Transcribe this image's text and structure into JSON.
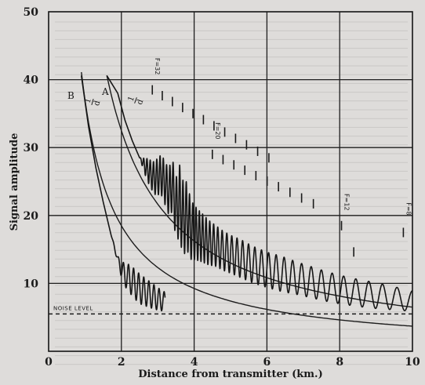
{
  "chart_data": {
    "type": "line",
    "title": "",
    "xlabel": "Distance from transmitter (km.)",
    "ylabel": "Signal amplitude",
    "xlim": [
      0,
      10
    ],
    "ylim": [
      0,
      50
    ],
    "x_ticks": [
      "0",
      "2",
      "4",
      "6",
      "8",
      "10"
    ],
    "y_ticks": [
      "10",
      "20",
      "30",
      "40",
      "50"
    ],
    "grid": true,
    "noise_level": {
      "label": "NOISE LEVEL",
      "y": 5.5
    },
    "curve_labels": {
      "A": "A",
      "B": "B"
    },
    "theory_curves": [
      {
        "id": "A",
        "label": "1/d",
        "numerator": "1",
        "denominator": "d",
        "k": 65,
        "x_range": [
          1.6,
          10
        ]
      },
      {
        "id": "B",
        "label": "1/d",
        "numerator": "1",
        "denominator": "d",
        "k": 37,
        "x_range": [
          0.9,
          10
        ]
      }
    ],
    "series": [
      {
        "id": "A",
        "x": [
          1.6,
          1.9,
          2.1,
          2.3,
          2.5,
          2.7,
          2.9,
          3.1,
          3.3,
          3.4,
          3.5,
          3.6,
          3.7,
          3.8,
          3.9,
          4.0,
          4.2,
          4.4,
          4.6,
          4.8,
          5.0,
          5.3,
          5.6,
          6.0,
          6.4,
          6.8,
          7.2,
          7.6,
          8.0,
          8.5,
          9.0,
          9.5,
          10.0
        ],
        "y": [
          40.6,
          38,
          34,
          31,
          28.5,
          26.8,
          25.5,
          26,
          23.5,
          24.5,
          21,
          22,
          19.5,
          20,
          18,
          17.5,
          16.8,
          16,
          15.5,
          14.8,
          14.3,
          13.6,
          12.8,
          12,
          11.4,
          10.8,
          10.2,
          9.6,
          9.1,
          8.6,
          8.2,
          7.8,
          7.4
        ],
        "oscillation": [
          0,
          0,
          0,
          0,
          0,
          1.6,
          2.4,
          3.0,
          3.4,
          4.0,
          4.5,
          5.5,
          5.5,
          5.0,
          4.5,
          4.0,
          3.6,
          3.3,
          3.0,
          2.9,
          2.8,
          2.8,
          2.7,
          2.6,
          2.6,
          2.4,
          2.3,
          2.2,
          2.1,
          2.0,
          1.9,
          1.7,
          1.5
        ]
      },
      {
        "id": "B",
        "x": [
          0.9,
          1.1,
          1.3,
          1.5,
          1.7,
          1.9,
          2.05,
          2.2,
          2.35,
          2.5,
          2.7,
          2.9,
          3.05,
          3.2
        ],
        "y": [
          40.6,
          33,
          27,
          22,
          17.5,
          13.5,
          11.5,
          10.8,
          10,
          9.2,
          8.6,
          8.0,
          7.6,
          7.3
        ],
        "oscillation": [
          0,
          0,
          0,
          0,
          0,
          0.5,
          1.6,
          2.0,
          2.2,
          2.2,
          2.0,
          1.8,
          1.6,
          1.4
        ]
      }
    ],
    "markers": [
      {
        "label": "F=32",
        "x": 2.85,
        "y_top": 38.5,
        "x_end": 6.3
      },
      {
        "label": "F=20",
        "x": 4.5,
        "y_top": 29,
        "x_end": 7.6
      },
      {
        "label": "F=12",
        "x": 8.05,
        "y_top": 18.5,
        "x_end": 8.5
      },
      {
        "label": "F=8",
        "x": 9.75,
        "y_top": 17.5,
        "x_end": 9.9
      }
    ]
  }
}
